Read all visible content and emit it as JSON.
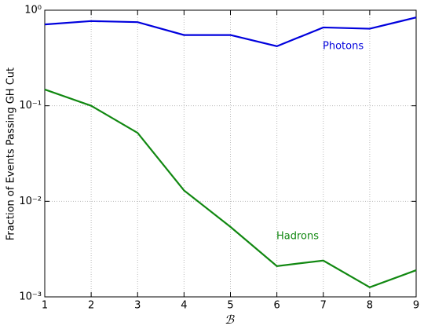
{
  "chart_data": {
    "type": "line",
    "xlabel": "ℬ",
    "ylabel": "Fraction of Events Passing GH Cut",
    "x": [
      1,
      2,
      3,
      4,
      5,
      6,
      7,
      8,
      9
    ],
    "series": [
      {
        "name": "Photons",
        "color": "#0000dd",
        "values": [
          0.71,
          0.77,
          0.75,
          0.55,
          0.55,
          0.42,
          0.66,
          0.64,
          0.84
        ]
      },
      {
        "name": "Hadrons",
        "color": "#118811",
        "values": [
          0.148,
          0.1,
          0.052,
          0.013,
          0.0054,
          0.0021,
          0.0024,
          0.00126,
          0.0019
        ]
      }
    ],
    "xlim": [
      1,
      9
    ],
    "xticks": [
      1,
      2,
      3,
      4,
      5,
      6,
      7,
      8,
      9
    ],
    "ylim": [
      0.001,
      1
    ],
    "yticks": [
      {
        "value": 0.001,
        "label": "10⁻³"
      },
      {
        "value": 0.01,
        "label": "10⁻²"
      },
      {
        "value": 0.1,
        "label": "10⁻¹"
      },
      {
        "value": 1,
        "label": "10⁰"
      }
    ],
    "ylog": true,
    "grid": true
  }
}
